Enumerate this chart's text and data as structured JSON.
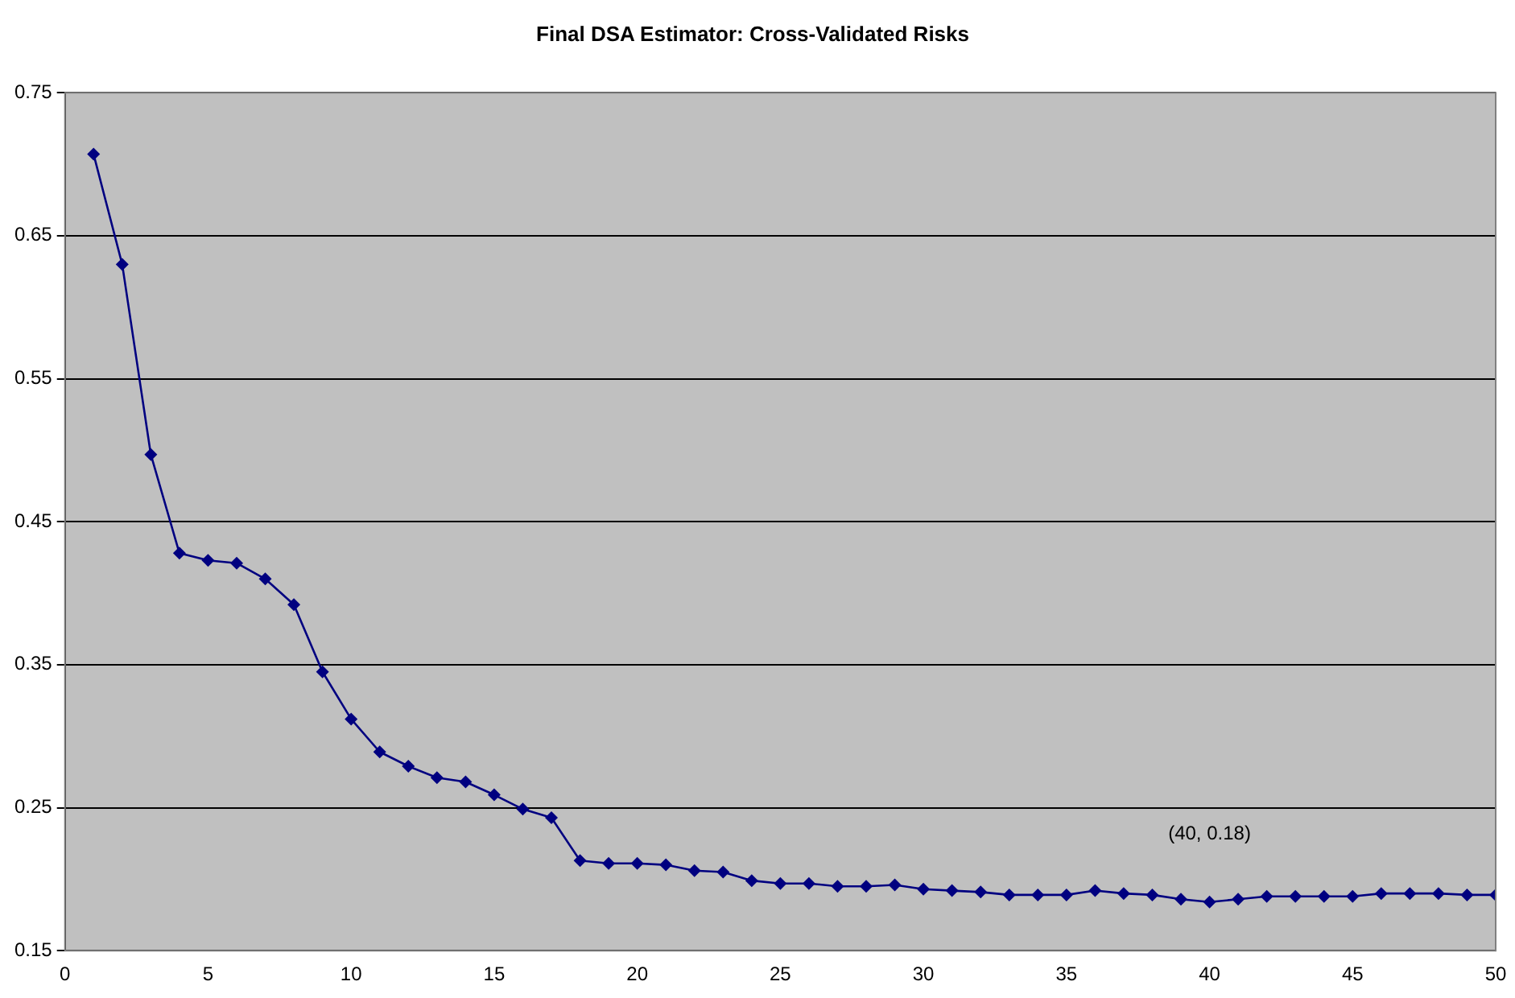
{
  "chart_data": {
    "type": "line",
    "title": "Final DSA Estimator: Cross-Validated Risks",
    "x": [
      1,
      2,
      3,
      4,
      5,
      6,
      7,
      8,
      9,
      10,
      11,
      12,
      13,
      14,
      15,
      16,
      17,
      18,
      19,
      20,
      21,
      22,
      23,
      24,
      25,
      26,
      27,
      28,
      29,
      30,
      31,
      32,
      33,
      34,
      35,
      36,
      37,
      38,
      39,
      40,
      41,
      42,
      43,
      44,
      45,
      46,
      47,
      48,
      49,
      50
    ],
    "series": [
      {
        "color": "#000080",
        "values": [
          0.707,
          0.63,
          0.497,
          0.428,
          0.423,
          0.421,
          0.41,
          0.392,
          0.345,
          0.312,
          0.289,
          0.279,
          0.271,
          0.268,
          0.259,
          0.249,
          0.243,
          0.213,
          0.211,
          0.211,
          0.21,
          0.206,
          0.205,
          0.199,
          0.197,
          0.197,
          0.195,
          0.195,
          0.196,
          0.193,
          0.192,
          0.191,
          0.189,
          0.189,
          0.189,
          0.192,
          0.19,
          0.189,
          0.186,
          0.184,
          0.186,
          0.188,
          0.188,
          0.188,
          0.188,
          0.19,
          0.19,
          0.19,
          0.189,
          0.189
        ]
      }
    ],
    "xlim": [
      0,
      50
    ],
    "xticks": [
      0,
      5,
      10,
      15,
      20,
      25,
      30,
      35,
      40,
      45,
      50
    ],
    "ylim": [
      0.15,
      0.75
    ],
    "yticks": [
      0.15,
      0.25,
      0.35,
      0.45,
      0.55,
      0.65,
      0.75
    ],
    "grid": "y",
    "marker": "diamond",
    "line_style": "solid",
    "legend": false,
    "annotations": [
      {
        "text": "(40, 0.18)",
        "x": 40,
        "y": 0.184
      }
    ]
  }
}
